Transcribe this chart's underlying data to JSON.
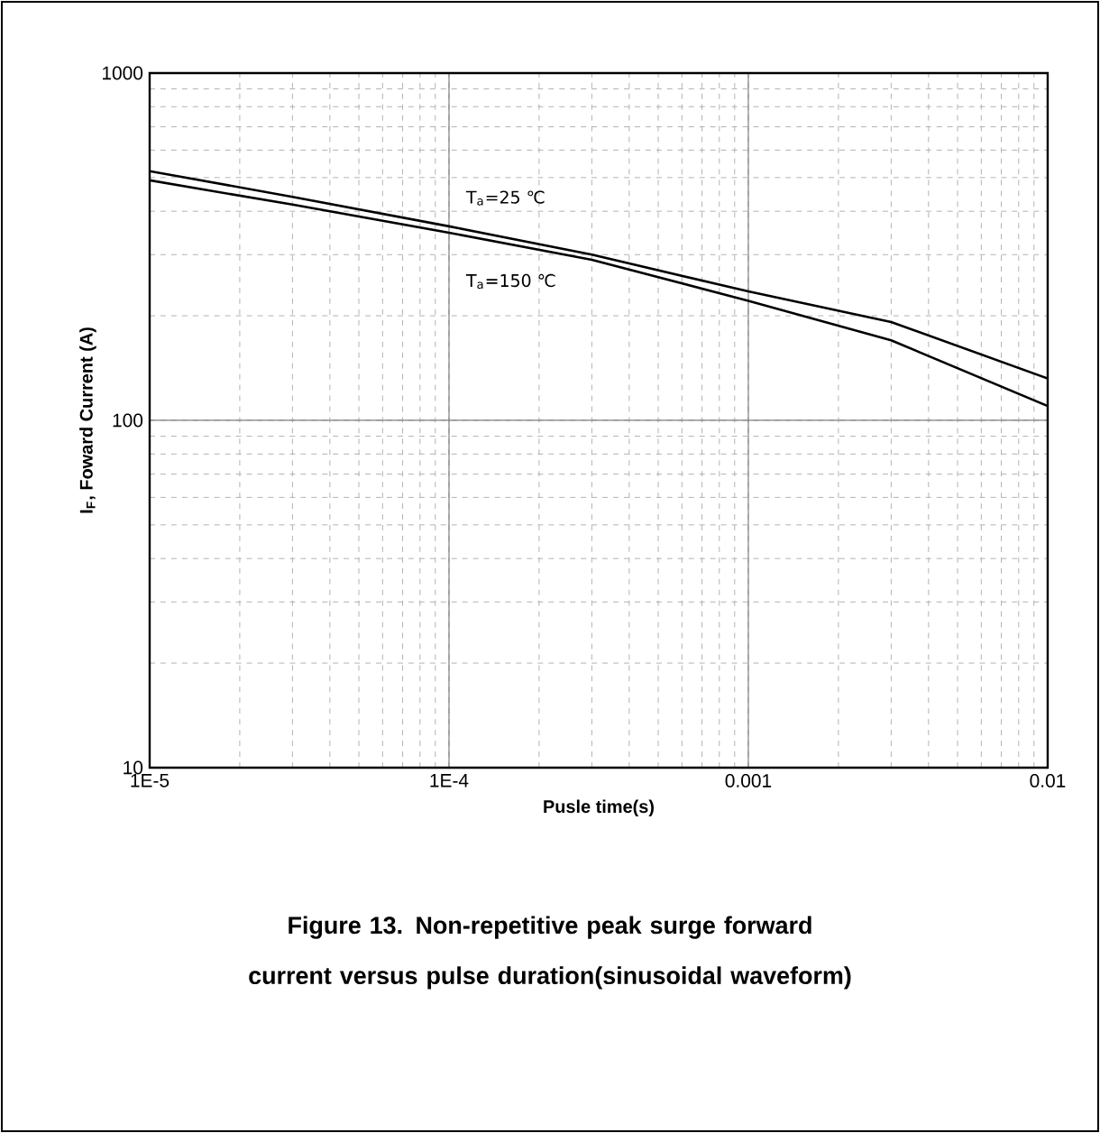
{
  "chart_data": {
    "type": "line",
    "title": "Figure 13. Non-repetitive peak surge forward current versus pulse duration(sinusoidal waveform)",
    "xlabel": "Pusle time(s)",
    "ylabel": "I$_{F}$, Foward Current  (A)",
    "x": [
      1e-05,
      3e-05,
      0.0001,
      0.0003,
      0.001,
      0.003,
      0.01
    ],
    "series": [
      {
        "color": "#000000",
        "values": [
          522,
          440,
          362,
          300,
          235,
          192,
          132
        ]
      },
      {
        "color": "#000000",
        "values": [
          491,
          418,
          347,
          290,
          221,
          170,
          110
        ]
      }
    ],
    "annotations": [
      "T$_{a}$=25 ℃",
      "T$_{a}$=150 ℃"
    ],
    "log": "xy",
    "xlim": [
      1e-05,
      0.01
    ],
    "ylim": [
      10,
      1000
    ],
    "xticks": [
      {
        "value": 1e-05,
        "label": "1E-5"
      },
      {
        "value": 0.0001,
        "label": "1E-4"
      },
      {
        "value": 0.001,
        "label": "0.001"
      },
      {
        "value": 0.01,
        "label": "0.01"
      }
    ],
    "yticks": [
      10,
      100,
      1000
    ],
    "grid": true,
    "marker": "none",
    "line_style": "solid"
  }
}
